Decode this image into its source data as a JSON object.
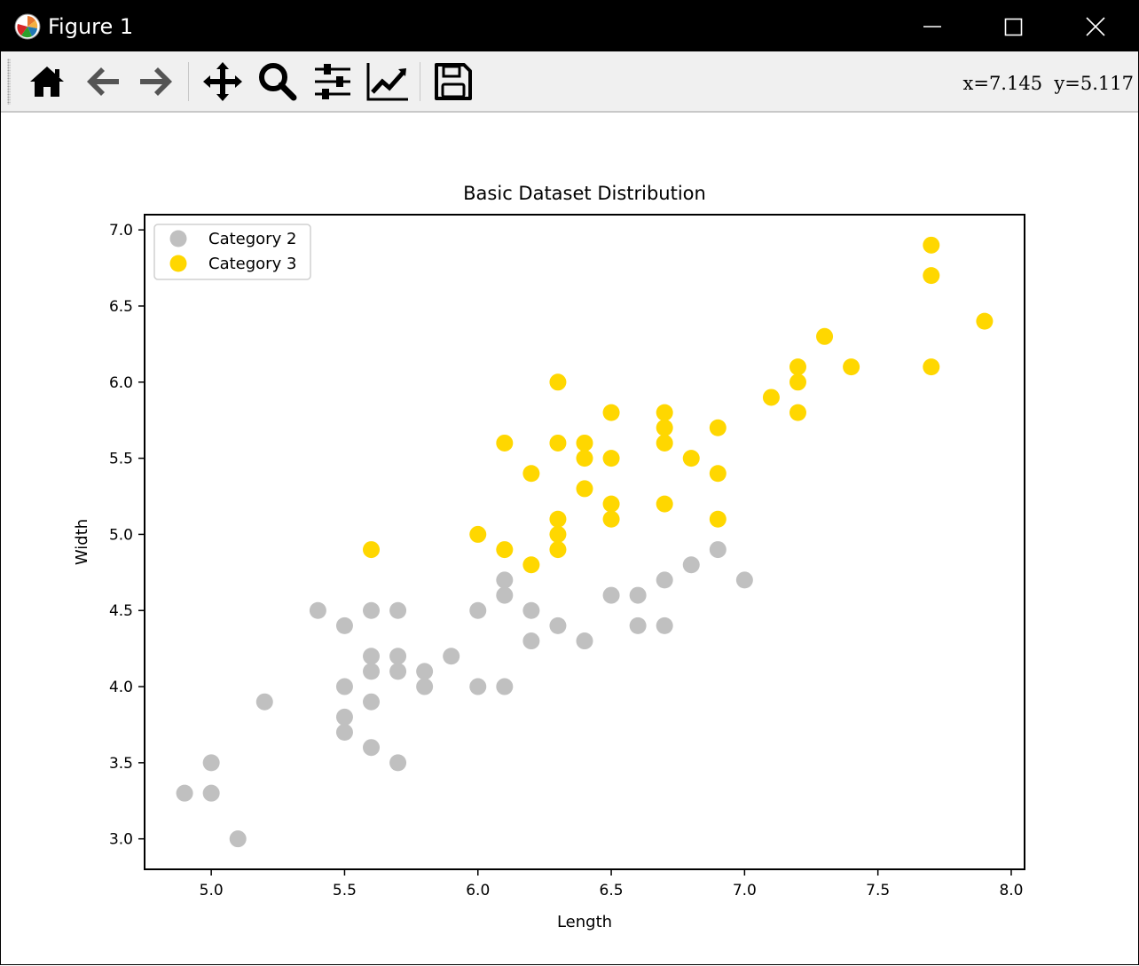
{
  "window": {
    "title": "Figure 1",
    "controls": [
      "minimize-icon",
      "maximize-icon",
      "close-icon"
    ]
  },
  "toolbar": {
    "buttons": [
      {
        "name": "home-button",
        "icon": "home-icon"
      },
      {
        "name": "back-button",
        "icon": "arrow-left-icon"
      },
      {
        "name": "forward-button",
        "icon": "arrow-right-icon"
      },
      {
        "name": "pan-button",
        "icon": "move-icon"
      },
      {
        "name": "zoom-button",
        "icon": "search-icon"
      },
      {
        "name": "configure-subplots-button",
        "icon": "sliders-icon"
      },
      {
        "name": "edit-axis-button",
        "icon": "line-chart-icon"
      },
      {
        "name": "save-button",
        "icon": "floppy-disk-icon"
      }
    ],
    "coords": "x=7.145  y=5.117"
  },
  "chart_data": {
    "type": "scatter",
    "title": "Basic Dataset Distribution",
    "xlabel": "Length",
    "ylabel": "Width",
    "xlim": [
      4.75,
      8.05
    ],
    "ylim": [
      2.8,
      7.1
    ],
    "xticks": [
      "5.0",
      "5.5",
      "6.0",
      "6.5",
      "7.0",
      "7.5",
      "8.0"
    ],
    "yticks": [
      "3.0",
      "3.5",
      "4.0",
      "4.5",
      "5.0",
      "5.5",
      "6.0",
      "6.5",
      "7.0"
    ],
    "grid": false,
    "legend_position": "top-left",
    "series": [
      {
        "name": "Category 2",
        "color": "#c0c0c0",
        "x": [
          4.9,
          5.0,
          5.0,
          5.1,
          5.2,
          5.4,
          5.5,
          5.5,
          5.5,
          5.5,
          5.6,
          5.6,
          5.6,
          5.6,
          5.6,
          5.7,
          5.7,
          5.7,
          5.7,
          5.8,
          5.8,
          5.9,
          6.0,
          6.0,
          6.1,
          6.1,
          6.1,
          6.2,
          6.2,
          6.3,
          6.4,
          6.5,
          6.6,
          6.6,
          6.7,
          6.7,
          6.8,
          6.9,
          7.0
        ],
        "y": [
          3.3,
          3.5,
          3.3,
          3.0,
          3.9,
          4.5,
          4.4,
          4.0,
          3.8,
          3.7,
          4.5,
          4.2,
          4.1,
          3.9,
          3.6,
          4.5,
          4.2,
          4.1,
          3.5,
          4.1,
          4.0,
          4.2,
          4.5,
          4.0,
          4.7,
          4.6,
          4.0,
          4.5,
          4.3,
          4.4,
          4.3,
          4.6,
          4.6,
          4.4,
          4.7,
          4.4,
          4.8,
          4.9,
          4.7
        ]
      },
      {
        "name": "Category 3",
        "color": "#ffd700",
        "x": [
          5.6,
          6.0,
          6.1,
          6.1,
          6.2,
          6.2,
          6.3,
          6.3,
          6.3,
          6.3,
          6.3,
          6.4,
          6.4,
          6.4,
          6.5,
          6.5,
          6.5,
          6.5,
          6.7,
          6.7,
          6.7,
          6.7,
          6.8,
          6.9,
          6.9,
          6.9,
          7.1,
          7.2,
          7.2,
          7.2,
          7.3,
          7.4,
          7.7,
          7.7,
          7.7,
          7.9
        ],
        "y": [
          4.9,
          5.0,
          5.6,
          4.9,
          5.4,
          4.8,
          6.0,
          5.6,
          5.1,
          5.0,
          4.9,
          5.6,
          5.5,
          5.3,
          5.8,
          5.5,
          5.2,
          5.1,
          5.8,
          5.7,
          5.6,
          5.2,
          5.5,
          5.7,
          5.4,
          5.1,
          5.9,
          6.1,
          6.0,
          5.8,
          6.3,
          6.1,
          6.9,
          6.7,
          6.1,
          6.4
        ]
      }
    ]
  }
}
